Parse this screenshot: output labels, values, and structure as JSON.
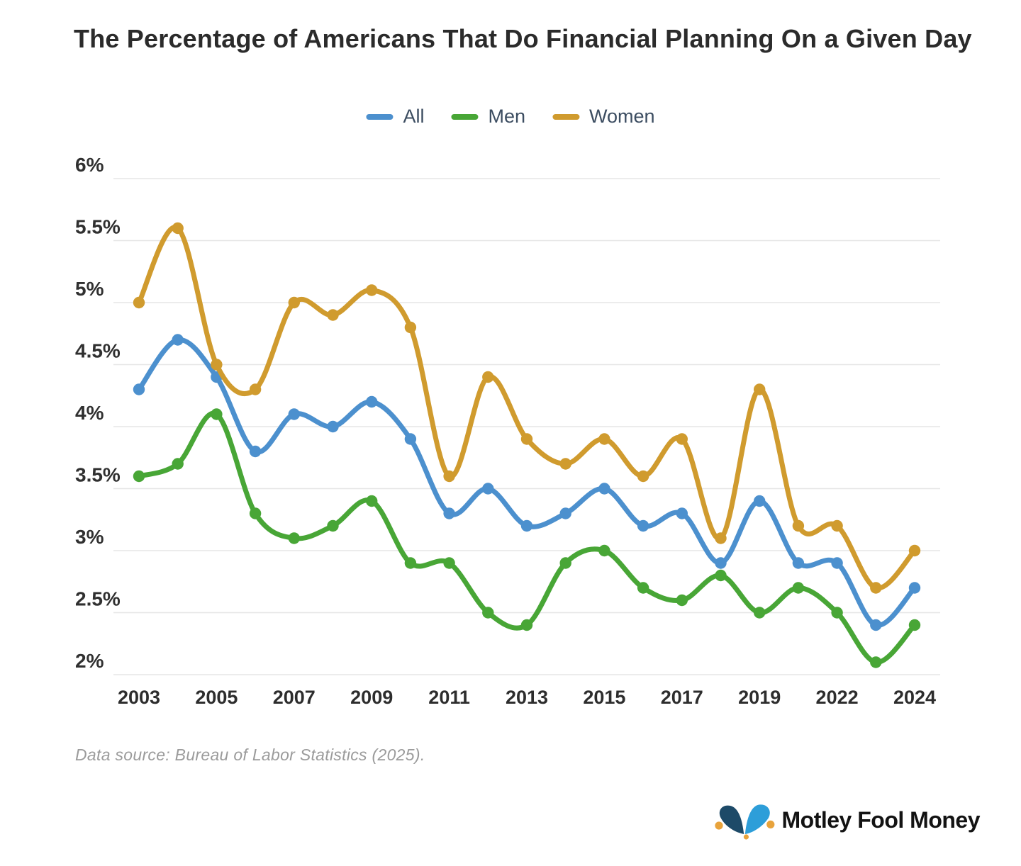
{
  "title": "The Percentage of Americans That Do Financial Planning On a Given Day",
  "legend": [
    {
      "label": "All",
      "color": "#4c90ce"
    },
    {
      "label": "Men",
      "color": "#48a636"
    },
    {
      "label": "Women",
      "color": "#d09b2e"
    }
  ],
  "source_note": "Data source: Bureau of Labor Statistics (2025).",
  "brand": {
    "name": "Motley Fool Money",
    "hat_dark": "#1d4a68",
    "hat_light": "#2d9ed9",
    "bell_gold": "#e8a33c"
  },
  "chart_data": {
    "type": "line",
    "x": [
      2003,
      2004,
      2005,
      2006,
      2007,
      2008,
      2009,
      2010,
      2011,
      2012,
      2013,
      2014,
      2015,
      2016,
      2017,
      2018,
      2019,
      2021,
      2022,
      2023,
      2024
    ],
    "x_tick_labels": [
      "2003",
      "2005",
      "2007",
      "2009",
      "2011",
      "2013",
      "2015",
      "2017",
      "2019",
      "2022",
      "2024"
    ],
    "y_ticks": [
      6,
      5.5,
      5,
      4.5,
      4,
      3.5,
      3,
      2.5,
      2
    ],
    "y_tick_labels": [
      "6%",
      "5.5%",
      "5%",
      "4.5%",
      "4%",
      "3.5%",
      "3%",
      "2.5%",
      "2%"
    ],
    "ylim": [
      2,
      6
    ],
    "grid": true,
    "legend_position": "top",
    "series": [
      {
        "name": "All",
        "color": "#4c90ce",
        "values": [
          4.3,
          4.7,
          4.4,
          3.8,
          4.1,
          4.0,
          4.2,
          3.9,
          3.3,
          3.5,
          3.2,
          3.3,
          3.5,
          3.2,
          3.3,
          2.9,
          3.4,
          2.9,
          2.9,
          2.4,
          2.7
        ]
      },
      {
        "name": "Men",
        "color": "#48a636",
        "values": [
          3.6,
          3.7,
          4.1,
          3.3,
          3.1,
          3.2,
          3.4,
          2.9,
          2.9,
          2.5,
          2.4,
          2.9,
          3.0,
          2.7,
          2.6,
          2.8,
          2.5,
          2.7,
          2.5,
          2.1,
          2.4
        ]
      },
      {
        "name": "Women",
        "color": "#d09b2e",
        "values": [
          5.0,
          5.6,
          4.5,
          4.3,
          5.0,
          4.9,
          5.1,
          4.8,
          3.6,
          4.4,
          3.9,
          3.7,
          3.9,
          3.6,
          3.9,
          3.1,
          4.3,
          3.2,
          3.2,
          2.7,
          3.0
        ]
      }
    ]
  }
}
